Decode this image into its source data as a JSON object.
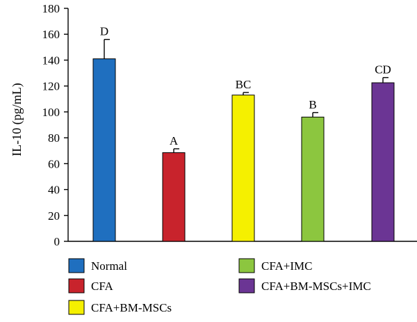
{
  "chart_data": {
    "type": "bar",
    "title": "",
    "xlabel": "",
    "ylabel": "IL-10 (pg/mL)",
    "ylim": [
      0,
      180
    ],
    "yticks": [
      0,
      20,
      40,
      60,
      80,
      100,
      120,
      140,
      160,
      180
    ],
    "grid": false,
    "legend_placement": "bottom",
    "categories": [
      "Normal",
      "CFA",
      "CFA+BM-MSCs",
      "CFA+IMC",
      "CFA+BM-MSCs+IMC"
    ],
    "values": [
      141,
      68.5,
      113,
      96,
      122.5
    ],
    "errors": [
      15,
      3,
      2,
      3.5,
      4
    ],
    "significance_labels": [
      "D",
      "A",
      "BC",
      "B",
      "CD"
    ],
    "colors": [
      "#1f6fbf",
      "#c8232c",
      "#f5f000",
      "#8cc63f",
      "#6b3594"
    ]
  }
}
